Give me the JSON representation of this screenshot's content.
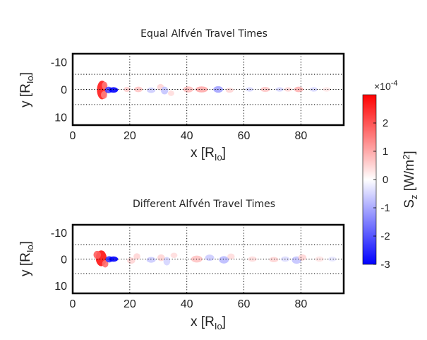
{
  "chart_data": [
    {
      "type": "heatmap",
      "title": "Equal Alfvén Travel Times",
      "xlabel": {
        "base": "x [R",
        "sub": "Io",
        "close": "]"
      },
      "ylabel": {
        "base": "y [R",
        "sub": "Io",
        "close": "]"
      },
      "xlim": [
        0,
        95
      ],
      "ylim": [
        -13,
        13
      ],
      "y_reversed": true,
      "xticks": [
        0,
        20,
        40,
        60,
        80
      ],
      "yticks": [
        -10,
        0,
        10
      ],
      "xtick_labels": [
        "0",
        "20",
        "40",
        "60",
        "80"
      ],
      "ytick_labels": [
        "-10",
        "0",
        "10"
      ],
      "grid": true,
      "grid_x": [
        20,
        40,
        60,
        80
      ],
      "grid_y": [
        -5.5,
        0,
        5.5
      ],
      "features": [
        {
          "x": 10.3,
          "y": 0.2,
          "w": 1.8,
          "h": 3.4,
          "v": 2.7
        },
        {
          "x": 11.2,
          "y": -1.4,
          "w": 1.0,
          "h": 1.4,
          "v": 1.6
        },
        {
          "x": 11.0,
          "y": 2.0,
          "w": 1.1,
          "h": 1.4,
          "v": 1.5
        },
        {
          "x": 12.6,
          "y": 0.2,
          "w": 1.3,
          "h": 1.2,
          "v": -2.2
        },
        {
          "x": 14.3,
          "y": 0.2,
          "w": 1.6,
          "h": 1.0,
          "v": -3.0
        },
        {
          "x": 19.0,
          "y": 0,
          "w": 1.2,
          "h": 0.9,
          "v": 0.6
        },
        {
          "x": 23.0,
          "y": 0,
          "w": 1.5,
          "h": 1.0,
          "v": 0.7
        },
        {
          "x": 27.5,
          "y": 0.3,
          "w": 1.5,
          "h": 1.0,
          "v": -0.6
        },
        {
          "x": 30.8,
          "y": -0.8,
          "w": 1.2,
          "h": 1.2,
          "v": 0.5
        },
        {
          "x": 32.2,
          "y": 0.4,
          "w": 1.3,
          "h": 1.4,
          "v": -0.7
        },
        {
          "x": 34.5,
          "y": 1.4,
          "w": 1.1,
          "h": 1.0,
          "v": 0.4
        },
        {
          "x": 40.5,
          "y": 0,
          "w": 1.8,
          "h": 1.1,
          "v": 0.8
        },
        {
          "x": 45.2,
          "y": 0,
          "w": 2.2,
          "h": 1.1,
          "v": 1.0
        },
        {
          "x": 51.0,
          "y": 0,
          "w": 1.7,
          "h": 1.2,
          "v": -1.1
        },
        {
          "x": 55.0,
          "y": 0.3,
          "w": 1.4,
          "h": 0.9,
          "v": 0.5
        },
        {
          "x": 62.0,
          "y": 0,
          "w": 1.4,
          "h": 0.8,
          "v": -0.5
        },
        {
          "x": 67.5,
          "y": 0,
          "w": 1.7,
          "h": 0.9,
          "v": 0.7
        },
        {
          "x": 72.5,
          "y": 0,
          "w": 1.4,
          "h": 0.8,
          "v": -0.5
        },
        {
          "x": 75.5,
          "y": 0,
          "w": 1.4,
          "h": 0.8,
          "v": 0.5
        },
        {
          "x": 79.2,
          "y": 0,
          "w": 1.6,
          "h": 1.0,
          "v": 0.9
        },
        {
          "x": 84.5,
          "y": 0,
          "w": 1.4,
          "h": 0.8,
          "v": -0.5
        },
        {
          "x": 89.0,
          "y": 0,
          "w": 1.4,
          "h": 0.8,
          "v": 0.3
        }
      ]
    },
    {
      "type": "heatmap",
      "title": "Different Alfvén Travel Times",
      "xlabel": {
        "base": "x [R",
        "sub": "Io",
        "close": "]"
      },
      "ylabel": {
        "base": "y [R",
        "sub": "Io",
        "close": "]"
      },
      "xlim": [
        0,
        95
      ],
      "ylim": [
        -13,
        13
      ],
      "y_reversed": true,
      "xticks": [
        0,
        20,
        40,
        60,
        80
      ],
      "yticks": [
        -10,
        0,
        10
      ],
      "xtick_labels": [
        "0",
        "20",
        "40",
        "60",
        "80"
      ],
      "ytick_labels": [
        "-10",
        "0",
        "10"
      ],
      "grid": true,
      "grid_x": [
        20,
        40,
        60,
        80
      ],
      "grid_y": [
        -5.5,
        0,
        5.5
      ],
      "features": [
        {
          "x": 10.0,
          "y": -0.3,
          "w": 1.9,
          "h": 3.0,
          "v": 2.8
        },
        {
          "x": 8.6,
          "y": -1.6,
          "w": 1.3,
          "h": 1.5,
          "v": 1.9
        },
        {
          "x": 11.4,
          "y": 1.8,
          "w": 1.1,
          "h": 1.4,
          "v": 1.7
        },
        {
          "x": 12.8,
          "y": 0.1,
          "w": 1.3,
          "h": 1.2,
          "v": -2.4
        },
        {
          "x": 14.3,
          "y": 0.0,
          "w": 1.6,
          "h": 1.0,
          "v": -3.0
        },
        {
          "x": 20.5,
          "y": 0.6,
          "w": 1.4,
          "h": 1.2,
          "v": 0.5
        },
        {
          "x": 22.5,
          "y": -1.0,
          "w": 1.2,
          "h": 1.2,
          "v": 0.5
        },
        {
          "x": 27.5,
          "y": 0.3,
          "w": 1.6,
          "h": 1.1,
          "v": -0.6
        },
        {
          "x": 31.0,
          "y": -0.5,
          "w": 1.3,
          "h": 1.3,
          "v": 0.5
        },
        {
          "x": 33.0,
          "y": 0.8,
          "w": 1.2,
          "h": 1.6,
          "v": -0.5
        },
        {
          "x": 35.5,
          "y": -1.4,
          "w": 1.2,
          "h": 1.0,
          "v": 0.4
        },
        {
          "x": 43.5,
          "y": 0,
          "w": 2.0,
          "h": 1.3,
          "v": 0.7
        },
        {
          "x": 48.0,
          "y": -0.5,
          "w": 1.6,
          "h": 1.2,
          "v": -0.6
        },
        {
          "x": 53.0,
          "y": 0.3,
          "w": 1.7,
          "h": 1.4,
          "v": -0.8
        },
        {
          "x": 55.5,
          "y": -1.0,
          "w": 1.3,
          "h": 1.1,
          "v": 0.4
        },
        {
          "x": 63.0,
          "y": 0,
          "w": 1.5,
          "h": 1.0,
          "v": 0.4
        },
        {
          "x": 70.5,
          "y": 0.2,
          "w": 1.6,
          "h": 1.0,
          "v": 0.5
        },
        {
          "x": 74.5,
          "y": 0,
          "w": 1.5,
          "h": 1.0,
          "v": -0.4
        },
        {
          "x": 78.5,
          "y": 0.4,
          "w": 1.7,
          "h": 1.4,
          "v": -0.7
        },
        {
          "x": 80.5,
          "y": -0.6,
          "w": 1.4,
          "h": 1.2,
          "v": 0.5
        },
        {
          "x": 86.5,
          "y": 0,
          "w": 1.5,
          "h": 1.0,
          "v": 0.3
        },
        {
          "x": 91.0,
          "y": 0,
          "w": 1.4,
          "h": 0.9,
          "v": -0.3
        }
      ]
    }
  ],
  "colorbar": {
    "label": {
      "base": "S",
      "sub": "z",
      "mid": " [W/m",
      "sup": "2",
      "close": "]"
    },
    "multiplier": {
      "base": "×10",
      "exp": "-4"
    },
    "range": [
      -3,
      3
    ],
    "ticks": [
      2,
      1,
      0,
      -1,
      -2,
      -3
    ],
    "tick_labels": [
      "2",
      "1",
      "0",
      "-1",
      "-2",
      "-3"
    ],
    "colors": {
      "max": "#ff0000",
      "mid": "#ffffff",
      "min": "#0000ff"
    }
  }
}
